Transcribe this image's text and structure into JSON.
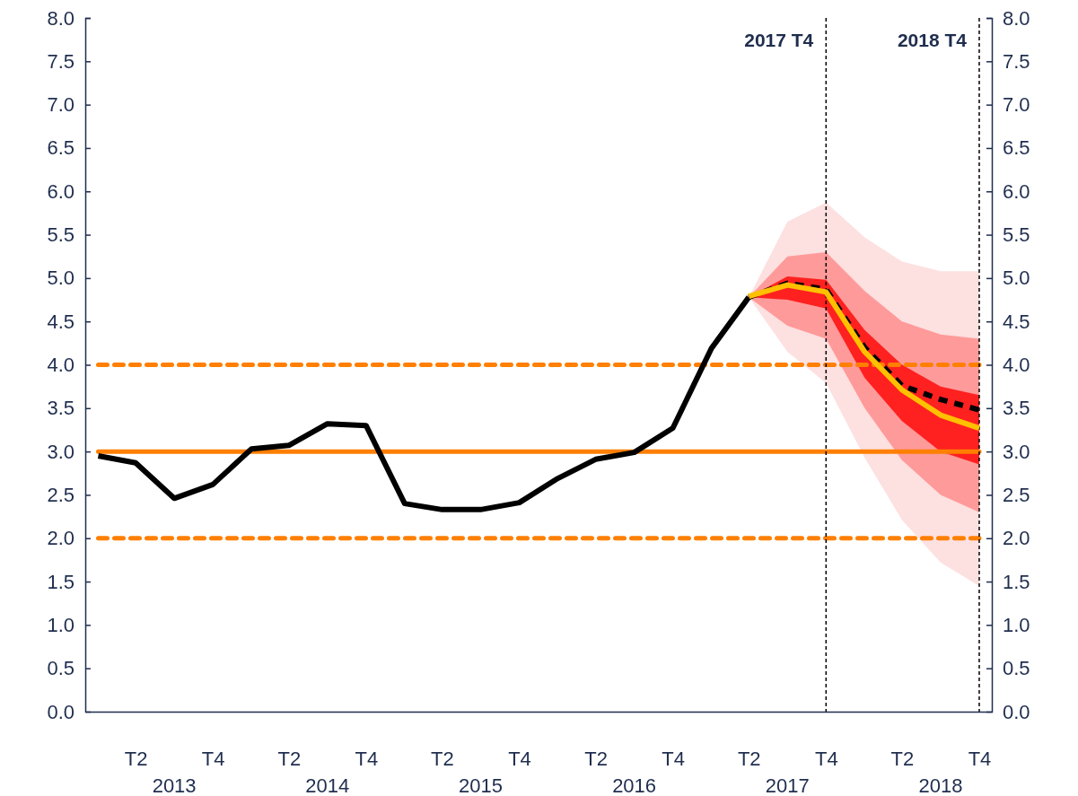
{
  "chart_data": {
    "type": "line",
    "x": [
      "2013-02",
      "2013-05",
      "2013-08",
      "2013-11",
      "2014-02",
      "2014-05",
      "2014-08",
      "2014-11",
      "2015-02",
      "2015-05",
      "2015-08",
      "2015-11",
      "2016-02",
      "2016-05",
      "2016-08",
      "2016-11",
      "2017-02",
      "2017-05",
      "2017-08",
      "2017-11",
      "2018-02",
      "2018-05",
      "2018-08",
      "2018-11"
    ],
    "series": [
      {
        "color": "#fde0e0",
        "values": [
          null,
          null,
          null,
          null,
          null,
          null,
          null,
          null,
          null,
          null,
          null,
          null,
          null,
          null,
          null,
          null,
          null,
          null,
          null,
          null,
          null,
          null,
          null,
          null
        ],
        "lower": [
          null,
          null,
          null,
          null,
          null,
          null,
          null,
          null,
          null,
          null,
          null,
          null,
          null,
          null,
          null,
          null,
          null,
          4.78,
          4.15,
          3.79,
          2.93,
          2.21,
          1.72,
          1.45
        ],
        "upper": [
          null,
          null,
          null,
          null,
          null,
          null,
          null,
          null,
          null,
          null,
          null,
          null,
          null,
          null,
          null,
          null,
          null,
          4.78,
          5.65,
          5.87,
          5.47,
          5.19,
          5.08,
          5.08
        ]
      },
      {
        "color": "#ff9a9a",
        "values": [
          null,
          null,
          null,
          null,
          null,
          null,
          null,
          null,
          null,
          null,
          null,
          null,
          null,
          null,
          null,
          null,
          null,
          null,
          null,
          null,
          null,
          null,
          null,
          null
        ],
        "lower": [
          null,
          null,
          null,
          null,
          null,
          null,
          null,
          null,
          null,
          null,
          null,
          null,
          null,
          null,
          null,
          null,
          null,
          4.78,
          4.45,
          4.3,
          3.5,
          2.9,
          2.5,
          2.3
        ],
        "upper": [
          null,
          null,
          null,
          null,
          null,
          null,
          null,
          null,
          null,
          null,
          null,
          null,
          null,
          null,
          null,
          null,
          null,
          4.78,
          5.25,
          5.3,
          4.85,
          4.5,
          4.35,
          4.3
        ]
      },
      {
        "color": "#ff2020",
        "values": [
          null,
          null,
          null,
          null,
          null,
          null,
          null,
          null,
          null,
          null,
          null,
          null,
          null,
          null,
          null,
          null,
          null,
          null,
          null,
          null,
          null,
          null,
          null,
          null
        ],
        "lower": [
          null,
          null,
          null,
          null,
          null,
          null,
          null,
          null,
          null,
          null,
          null,
          null,
          null,
          null,
          null,
          null,
          null,
          4.78,
          4.75,
          4.65,
          3.85,
          3.35,
          3.0,
          2.85
        ],
        "upper": [
          null,
          null,
          null,
          null,
          null,
          null,
          null,
          null,
          null,
          null,
          null,
          null,
          null,
          null,
          null,
          null,
          null,
          4.78,
          5.02,
          4.98,
          4.4,
          4.0,
          3.75,
          3.65
        ]
      },
      {
        "color": "#000000",
        "values": [
          2.95,
          2.87,
          2.46,
          2.62,
          3.03,
          3.07,
          3.32,
          3.3,
          2.4,
          2.33,
          2.33,
          2.41,
          2.69,
          2.91,
          2.99,
          3.27,
          4.19,
          4.78,
          null,
          null,
          null,
          null,
          null,
          null
        ]
      },
      {
        "color": "#000000",
        "line_style": "dashed",
        "values": [
          null,
          null,
          null,
          null,
          null,
          null,
          null,
          null,
          null,
          null,
          null,
          null,
          null,
          null,
          null,
          null,
          null,
          4.78,
          4.94,
          4.87,
          4.2,
          3.76,
          3.6,
          3.48
        ]
      },
      {
        "color": "#ffc000",
        "values": [
          null,
          null,
          null,
          null,
          null,
          null,
          null,
          null,
          null,
          null,
          null,
          null,
          null,
          null,
          null,
          null,
          null,
          4.79,
          4.92,
          4.84,
          4.15,
          3.71,
          3.42,
          3.27
        ]
      }
    ],
    "xlim": [
      "2013-01",
      "2018-12"
    ],
    "xticks": [
      {
        "value": "2013-05",
        "label": "T2"
      },
      {
        "value": "2013-11",
        "label": "T4"
      },
      {
        "value": "2014-05",
        "label": "T2"
      },
      {
        "value": "2014-11",
        "label": "T4"
      },
      {
        "value": "2015-05",
        "label": "T2"
      },
      {
        "value": "2015-11",
        "label": "T4"
      },
      {
        "value": "2016-05",
        "label": "T2"
      },
      {
        "value": "2016-11",
        "label": "T4"
      },
      {
        "value": "2017-05",
        "label": "T2"
      },
      {
        "value": "2017-11",
        "label": "T4"
      },
      {
        "value": "2018-05",
        "label": "T2"
      },
      {
        "value": "2018-11",
        "label": "T4"
      }
    ],
    "annotations": [
      "2013",
      "2014",
      "2015",
      "2016",
      "2017",
      "2018"
    ],
    "ylim": [
      0,
      8
    ],
    "yticks": [
      {
        "value": 0,
        "label": "0.0"
      },
      {
        "value": 0.5,
        "label": "0.5"
      },
      {
        "value": 1,
        "label": "1.0"
      },
      {
        "value": 1.5,
        "label": "1.5"
      },
      {
        "value": 2,
        "label": "2.0"
      },
      {
        "value": 2.5,
        "label": "2.5"
      },
      {
        "value": 3,
        "label": "3.0"
      },
      {
        "value": 3.5,
        "label": "3.5"
      },
      {
        "value": 4,
        "label": "4.0"
      },
      {
        "value": 4.5,
        "label": "4.5"
      },
      {
        "value": 5,
        "label": "5.0"
      },
      {
        "value": 5.5,
        "label": "5.5"
      },
      {
        "value": 6,
        "label": "6.0"
      },
      {
        "value": 6.5,
        "label": "6.5"
      },
      {
        "value": 7,
        "label": "7.0"
      },
      {
        "value": 7.5,
        "label": "7.5"
      },
      {
        "value": 8,
        "label": "8.0"
      }
    ],
    "y2lim": [
      0,
      8
    ],
    "y2ticks": [
      {
        "value": 0,
        "label": "0.0"
      },
      {
        "value": 0.5,
        "label": "0.5"
      },
      {
        "value": 1,
        "label": "1.0"
      },
      {
        "value": 1.5,
        "label": "1.5"
      },
      {
        "value": 2,
        "label": "2.0"
      },
      {
        "value": 2.5,
        "label": "2.5"
      },
      {
        "value": 3,
        "label": "3.0"
      },
      {
        "value": 3.5,
        "label": "3.5"
      },
      {
        "value": 4,
        "label": "4.0"
      },
      {
        "value": 4.5,
        "label": "4.5"
      },
      {
        "value": 5,
        "label": "5.0"
      },
      {
        "value": 5.5,
        "label": "5.5"
      },
      {
        "value": 6,
        "label": "6.0"
      },
      {
        "value": 6.5,
        "label": "6.5"
      },
      {
        "value": 7,
        "label": "7.0"
      },
      {
        "value": 7.5,
        "label": "7.5"
      },
      {
        "value": 8,
        "label": "8.0"
      }
    ],
    "ref_lines": [
      {
        "axis": "y",
        "value": 3,
        "color": "#ff7f00",
        "line_style": "solid"
      },
      {
        "axis": "y",
        "value": 4,
        "color": "#ff7f00",
        "line_style": "dashed"
      },
      {
        "axis": "y",
        "value": 2,
        "color": "#ff7f00",
        "line_style": "dashed"
      },
      {
        "axis": "x",
        "value": "2017-11",
        "label": "2017 T4",
        "color": "#000000",
        "line_style": "dashed"
      },
      {
        "axis": "x",
        "value": "2018-11",
        "label": "2018 T4",
        "color": "#000000",
        "line_style": "dashed"
      }
    ],
    "grid": false,
    "marker": "none"
  }
}
